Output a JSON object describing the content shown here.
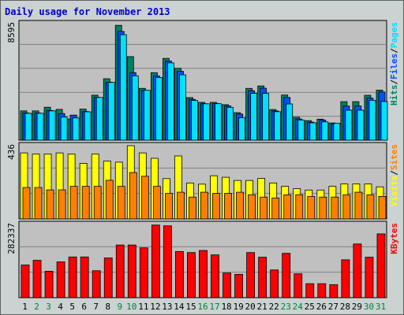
{
  "chart_data": {
    "type": "bar",
    "title": "Daily usage for November 2013",
    "categories": [
      "1",
      "2",
      "3",
      "4",
      "5",
      "6",
      "7",
      "8",
      "9",
      "10",
      "11",
      "12",
      "13",
      "14",
      "15",
      "16",
      "17",
      "18",
      "19",
      "20",
      "21",
      "22",
      "23",
      "24",
      "25",
      "26",
      "27",
      "28",
      "29",
      "30",
      "31"
    ],
    "weekend_days": [
      "2",
      "3",
      "9",
      "10",
      "16",
      "17",
      "23",
      "24",
      "30",
      "31"
    ],
    "colors": {
      "pages": "#00e0ff",
      "files": "#0050ff",
      "hits": "#008060",
      "visits": "#ffff00",
      "sites": "#ff8000",
      "kbytes": "#ff0000",
      "panel_bg": "#c0c0c0",
      "frame_bg": "#cbd2d2",
      "title": "#0000cc",
      "weekday_tick": "#000000",
      "weekend_tick": "#008040"
    },
    "panels": [
      {
        "name": "traffic",
        "ymax_label": "8595",
        "ylim": [
          0,
          8595
        ],
        "legend": [
          {
            "label": "Pages",
            "color": "#00e0ff"
          },
          {
            "label": "/",
            "color": "#000000"
          },
          {
            "label": "Files",
            "color": "#0050ff"
          },
          {
            "label": "/",
            "color": "#000000"
          },
          {
            "label": "Hits",
            "color": "#008060"
          }
        ],
        "series": [
          {
            "name": "Hits",
            "values": [
              2160,
              2160,
              2430,
              2270,
              1570,
              2290,
              3320,
              4530,
              8470,
              6160,
              3820,
              4980,
              6030,
              5300,
              3140,
              2790,
              2790,
              2620,
              2030,
              3820,
              4000,
              2260,
              3330,
              1690,
              1440,
              1550,
              1270,
              2840,
              2840,
              3310,
              3690
            ]
          },
          {
            "name": "Files",
            "values": [
              2000,
              2000,
              2190,
              1960,
              1850,
              2110,
              3150,
              4280,
              8020,
              4980,
              3660,
              4740,
              5840,
              5080,
              3010,
              2690,
              2690,
              2530,
              1930,
              3650,
              3830,
              2160,
              3150,
              1560,
              1330,
              1480,
              1190,
              2520,
              2520,
              3100,
              3550
            ]
          },
          {
            "name": "Pages",
            "values": [
              1980,
              1980,
              2160,
              1700,
              1640,
              2090,
              3150,
              4260,
              7780,
              4750,
              3680,
              4620,
              5700,
              4820,
              2930,
              2680,
              2690,
              2420,
              1650,
              3450,
              3450,
              2100,
              2670,
              1490,
              1280,
              1350,
              1240,
              2210,
              2210,
              2940,
              2850
            ]
          }
        ]
      },
      {
        "name": "visitors",
        "ymax_label": "436",
        "ylim": [
          0,
          436
        ],
        "legend": [
          {
            "label": "Sites",
            "color": "#ff8000"
          },
          {
            "label": "/",
            "color": "#000000"
          },
          {
            "label": "Visits",
            "color": "#ffff00"
          }
        ],
        "series": [
          {
            "name": "Visits",
            "values": [
              393,
              386,
              386,
              393,
              386,
              331,
              386,
              345,
              338,
              436,
              393,
              361,
              240,
              375,
              214,
              207,
              257,
              248,
              229,
              229,
              241,
              214,
              194,
              180,
              172,
              172,
              194,
              208,
              208,
              208,
              191
            ]
          },
          {
            "name": "Sites",
            "values": [
              187,
              187,
              173,
              173,
              194,
              194,
              194,
              230,
              194,
              276,
              254,
              194,
              152,
              159,
              130,
              159,
              152,
              152,
              159,
              144,
              130,
              124,
              144,
              144,
              134,
              130,
              130,
              144,
              159,
              144,
              134
            ]
          }
        ]
      },
      {
        "name": "volume",
        "ymax_label": "282337",
        "ylim": [
          0,
          282337
        ],
        "legend": [
          {
            "label": "KBytes",
            "color": "#ff0000"
          }
        ],
        "series": [
          {
            "name": "KBytes",
            "values": [
              126000,
              144000,
              102000,
              138000,
              157000,
              157000,
              104000,
              153000,
              203000,
              203000,
              192000,
              280000,
              277000,
              178000,
              174000,
              182000,
              165000,
              95000,
              90000,
              174000,
              156000,
              107000,
              171000,
              92000,
              54000,
              54000,
              50000,
              146000,
              207000,
              156000,
              246000
            ]
          }
        ]
      }
    ]
  }
}
